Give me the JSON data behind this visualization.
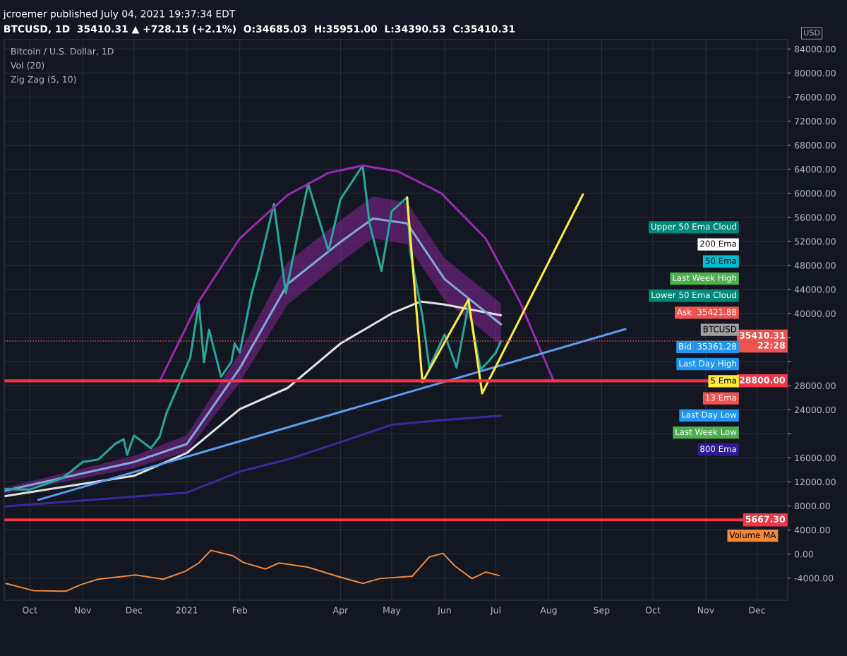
{
  "chart_data": {
    "type": "line",
    "title": "jcroemer published July 04, 2021 19:37:34 EDT",
    "subtitle": "BTCUSD, 1D  35410.31 ▲ +728.15 (+2.1%)  O:34685.03  H:35951.00  L:34390.53  C:35410.31",
    "ylabel": "USD",
    "xlim": [
      "2020-09-16",
      "2021-12-19"
    ],
    "xticks": [
      {
        "value": "2020-10-01",
        "label": "Oct"
      },
      {
        "value": "2020-11-01",
        "label": "Nov"
      },
      {
        "value": "2020-12-01",
        "label": "Dec"
      },
      {
        "value": "2021-01-01",
        "label": "2021"
      },
      {
        "value": "2021-02-01",
        "label": "Feb"
      },
      {
        "value": "2021-04-01",
        "label": "Apr"
      },
      {
        "value": "2021-05-01",
        "label": "May"
      },
      {
        "value": "2021-06-01",
        "label": "Jun"
      },
      {
        "value": "2021-07-01",
        "label": "Jul"
      },
      {
        "value": "2021-08-01",
        "label": "Aug"
      },
      {
        "value": "2021-09-01",
        "label": "Sep"
      },
      {
        "value": "2021-10-01",
        "label": "Oct"
      },
      {
        "value": "2021-11-01",
        "label": "Nov"
      },
      {
        "value": "2021-12-01",
        "label": "Dec"
      }
    ],
    "ylim": [
      -7700,
      85600
    ],
    "yticks": [
      {
        "value": -4000,
        "label": "-4000.00"
      },
      {
        "value": 0,
        "label": "0.00"
      },
      {
        "value": 4000,
        "label": "4000.00"
      },
      {
        "value": 8000,
        "label": "8000.00"
      },
      {
        "value": 12000,
        "label": "12000.00"
      },
      {
        "value": 16000,
        "label": "16000.00"
      },
      {
        "value": 20000,
        "label": null
      },
      {
        "value": 24000,
        "label": "24000.00"
      },
      {
        "value": 28000,
        "label": "28000.00"
      },
      {
        "value": 32000,
        "label": null
      },
      {
        "value": 36000,
        "label": null
      },
      {
        "value": 40000,
        "label": "40000.00"
      },
      {
        "value": 44000,
        "label": "44000.00"
      },
      {
        "value": 48000,
        "label": "48000.00"
      },
      {
        "value": 52000,
        "label": "52000.00"
      },
      {
        "value": 56000,
        "label": "56000.00"
      },
      {
        "value": 60000,
        "label": "60000.00"
      },
      {
        "value": 64000,
        "label": "64000.00"
      },
      {
        "value": 68000,
        "label": "68000.00"
      },
      {
        "value": 72000,
        "label": "72000.00"
      },
      {
        "value": 76000,
        "label": "76000.00"
      },
      {
        "value": 80000,
        "label": "80000.00"
      },
      {
        "value": 84000,
        "label": "84000.00"
      }
    ],
    "grid": true,
    "legend": false,
    "series": [
      {
        "color": "#e0e0e0",
        "x": [
          "2020-09-16",
          "2020-12-01",
          "2021-01-01",
          "2021-02-01",
          "2021-03-01",
          "2021-04-01",
          "2021-05-01",
          "2021-05-18",
          "2021-06-01",
          "2021-07-04"
        ],
        "values": [
          9600,
          13000,
          16800,
          24100,
          27600,
          35000,
          40000,
          42000,
          41500,
          39700
        ]
      },
      {
        "color": "#3a2a9c",
        "x": [
          "2020-09-16",
          "2021-01-01",
          "2021-02-01",
          "2021-03-01",
          "2021-04-01",
          "2021-05-01",
          "2021-06-01",
          "2021-07-04"
        ],
        "values": [
          7900,
          10200,
          13700,
          15700,
          18600,
          21500,
          22300,
          23000
        ]
      },
      {
        "color": "#7fa8d8",
        "x": [
          "2020-09-16",
          "2020-12-01",
          "2021-01-01",
          "2021-02-01",
          "2021-03-01",
          "2021-04-01",
          "2021-04-20",
          "2021-05-10",
          "2021-06-01",
          "2021-07-04"
        ],
        "values": [
          10500,
          15300,
          18300,
          30900,
          44900,
          51900,
          55800,
          55000,
          45700,
          38200
        ],
        "lower": [
          10000,
          14300,
          17000,
          28500,
          41500,
          48500,
          52500,
          51500,
          42200,
          34700
        ],
        "upper": [
          11000,
          16300,
          19800,
          33500,
          48500,
          55500,
          59500,
          58500,
          49200,
          41700
        ]
      },
      {
        "color": "#26a69a",
        "x": [
          "2020-09-16",
          "2020-10-01",
          "2020-10-20",
          "2020-11-01",
          "2020-11-10",
          "2020-11-20",
          "2020-11-25",
          "2020-11-27",
          "2020-12-01",
          "2020-12-11",
          "2020-12-16",
          "2020-12-20",
          "2020-12-27",
          "2021-01-03",
          "2021-01-08",
          "2021-01-11",
          "2021-01-14",
          "2021-01-21",
          "2021-01-27",
          "2021-01-29",
          "2021-02-01",
          "2021-02-08",
          "2021-02-12",
          "2021-02-21",
          "2021-02-28",
          "2021-03-13",
          "2021-03-25",
          "2021-04-01",
          "2021-04-14",
          "2021-04-18",
          "2021-04-25",
          "2021-05-01",
          "2021-05-10",
          "2021-05-12",
          "2021-05-19",
          "2021-05-23",
          "2021-06-01",
          "2021-06-08",
          "2021-06-15",
          "2021-06-22",
          "2021-06-26",
          "2021-07-01",
          "2021-07-04"
        ],
        "values": [
          10800,
          10700,
          12600,
          15300,
          15700,
          18300,
          19100,
          16500,
          19700,
          17600,
          19500,
          23400,
          28000,
          32700,
          41700,
          31900,
          37300,
          29500,
          31900,
          35000,
          33500,
          43400,
          47500,
          58200,
          43400,
          61600,
          50400,
          59000,
          64600,
          55000,
          47100,
          57000,
          59300,
          50000,
          39600,
          31000,
          36500,
          31000,
          41500,
          30700,
          31800,
          33500,
          35400
        ]
      },
      {
        "color": "#9c27b0",
        "x": [
          "2020-12-16",
          "2021-01-08",
          "2021-02-01",
          "2021-03-01",
          "2021-03-25",
          "2021-04-14",
          "2021-05-05",
          "2021-05-30",
          "2021-06-25",
          "2021-07-15",
          "2021-08-04"
        ],
        "values": [
          28700,
          42000,
          52500,
          59700,
          63400,
          64600,
          63600,
          60000,
          52500,
          42000,
          28700
        ]
      },
      {
        "color": "#5b9cf0",
        "x": [
          "2020-10-06",
          "2021-09-15"
        ],
        "values": [
          9000,
          37400
        ]
      },
      {
        "color": "#ffeb3b",
        "x": [
          "2021-05-10",
          "2021-05-19",
          "2021-06-15",
          "2021-06-23",
          "2021-08-21"
        ],
        "values": [
          59300,
          28600,
          42300,
          26700,
          59800
        ]
      },
      {
        "name": "Volume MA",
        "color": "#f0883e",
        "x": [
          "2020-09-17",
          "2020-10-03",
          "2020-10-22",
          "2020-10-31",
          "2020-11-10",
          "2020-12-02",
          "2020-12-18",
          "2020-12-31",
          "2021-01-08",
          "2021-01-15",
          "2021-01-28",
          "2021-02-03",
          "2021-02-16",
          "2021-02-24",
          "2021-03-13",
          "2021-03-30",
          "2021-04-14",
          "2021-04-24",
          "2021-05-13",
          "2021-05-23",
          "2021-05-31",
          "2021-06-07",
          "2021-06-17",
          "2021-06-25",
          "2021-07-03"
        ],
        "values": [
          -4900,
          -6100,
          -6200,
          -5100,
          -4200,
          -3500,
          -4200,
          -2900,
          -1500,
          600,
          -300,
          -1400,
          -2500,
          -1500,
          -2200,
          -3700,
          -4900,
          -4100,
          -3700,
          -500,
          100,
          -2000,
          -4100,
          -3000,
          -3600
        ]
      }
    ],
    "ref_lines": [
      {
        "axis": "y",
        "value": 28800,
        "label": "28800.00",
        "color": "#f23645",
        "line_style": "solid"
      },
      {
        "axis": "y",
        "value": 5667.3,
        "label": "5667.30",
        "color": "#f23645",
        "line_style": "solid"
      },
      {
        "axis": "y",
        "value": 35410.31,
        "label": "35410.31\n22:28",
        "color": "#ef5350",
        "line_style": "dotted"
      }
    ],
    "annotations": [
      "Bitcoin / U.S. Dollar, 1D",
      "Vol (20)",
      "Zig Zag (5, 10)",
      "Upper 50 Ema Cloud",
      "200 Ema",
      "50 Ema",
      "Last Week High",
      "Lower 50 Ema Cloud",
      "Ask  35421.88",
      "BTCUSD",
      "Bid  35361.28",
      "Last Day High",
      "5 Ema",
      "13 Ema",
      "Last Day Low",
      "Last Week Low",
      "800 Ema"
    ]
  }
}
